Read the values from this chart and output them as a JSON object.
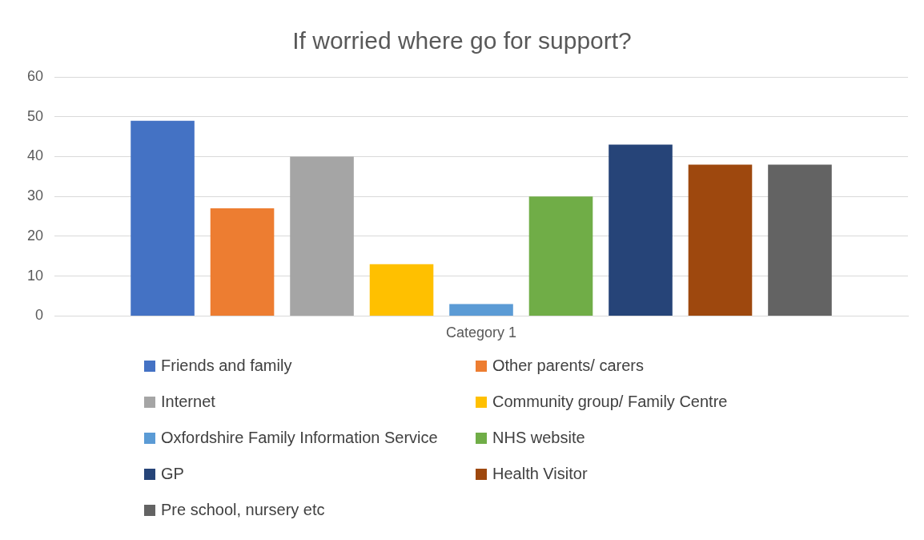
{
  "chart_data": {
    "type": "bar",
    "title": "If worried where go for support?",
    "categories": [
      "Category 1"
    ],
    "series": [
      {
        "name": "Friends and family",
        "color": "#4472c4",
        "values": [
          49
        ]
      },
      {
        "name": "Other parents/ carers",
        "color": "#ed7d31",
        "values": [
          27
        ]
      },
      {
        "name": "Internet",
        "color": "#a5a5a5",
        "values": [
          40
        ]
      },
      {
        "name": "Community group/ Family Centre",
        "color": "#ffc000",
        "values": [
          13
        ]
      },
      {
        "name": "Oxfordshire Family Information Service",
        "color": "#5b9bd5",
        "values": [
          3
        ]
      },
      {
        "name": "NHS website",
        "color": "#70ad47",
        "values": [
          30
        ]
      },
      {
        "name": "GP",
        "color": "#264478",
        "values": [
          43
        ]
      },
      {
        "name": "Health Visitor",
        "color": "#9e480e",
        "values": [
          38
        ]
      },
      {
        "name": "Pre school, nursery etc",
        "color": "#636363",
        "values": [
          38
        ]
      }
    ],
    "ylim": [
      0,
      60
    ],
    "yticks": [
      0,
      10,
      20,
      30,
      40,
      50,
      60
    ],
    "grid": "y",
    "legend": "bottom"
  }
}
